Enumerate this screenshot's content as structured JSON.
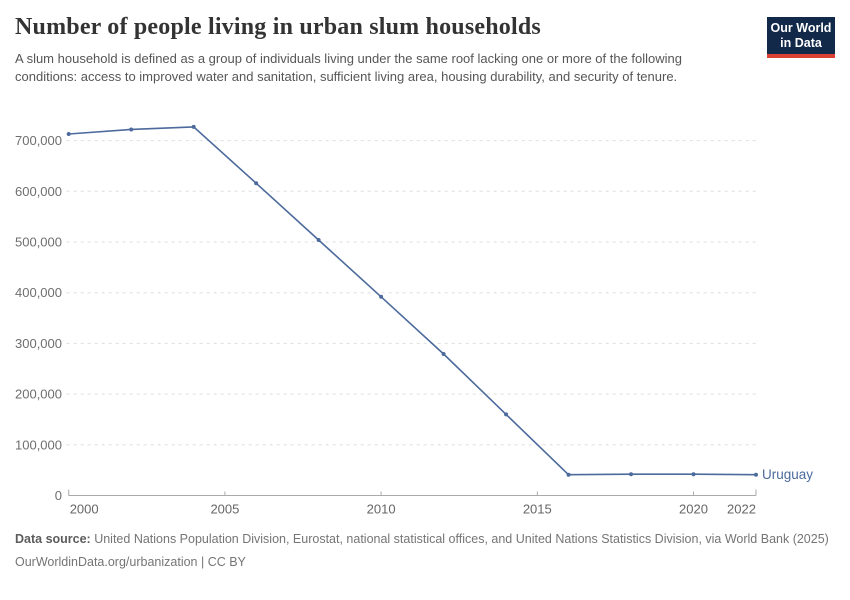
{
  "header": {
    "title": "Number of people living in urban slum households",
    "subtitle": "A slum household is defined as a group of individuals living under the same roof lacking one or more of the following conditions: access to improved water and sanitation, sufficient living area, housing durability, and security of tenure.",
    "logo": {
      "line1": "Our World",
      "line2": "in Data",
      "bg_color": "#12294a",
      "accent_color": "#dc3f34"
    }
  },
  "chart_data": {
    "type": "line",
    "title": "Number of people living in urban slum households",
    "xlabel": "",
    "ylabel": "",
    "x": [
      2000,
      2002,
      2004,
      2006,
      2008,
      2010,
      2012,
      2014,
      2016,
      2018,
      2020,
      2022
    ],
    "series": [
      {
        "name": "Uruguay",
        "color": "#4C6A9C",
        "values": [
          713000,
          722000,
          727000,
          616000,
          504000,
          392000,
          279000,
          160000,
          41000,
          42000,
          42000,
          41000
        ]
      }
    ],
    "x_ticks": [
      2000,
      2005,
      2010,
      2015,
      2020,
      2022
    ],
    "y_ticks": [
      {
        "value": 0,
        "label": "0"
      },
      {
        "value": 100000,
        "label": "100,000"
      },
      {
        "value": 200000,
        "label": "200,000"
      },
      {
        "value": 300000,
        "label": "300,000"
      },
      {
        "value": 400000,
        "label": "400,000"
      },
      {
        "value": 500000,
        "label": "500,000"
      },
      {
        "value": 600000,
        "label": "600,000"
      },
      {
        "value": 700000,
        "label": "700,000"
      }
    ],
    "xlim": [
      2000,
      2022
    ],
    "ylim": [
      0,
      730000
    ],
    "grid": "horizontal-dashed",
    "legend_position": "entity label right of last point",
    "colors": {
      "grid": "#dedede",
      "axis": "#a9a9a9",
      "y_tick_label": "#6e6e6e",
      "x_tick_label": "#666666"
    }
  },
  "footer": {
    "source_bold": "Data source:",
    "source_text": " United Nations Population Division, Eurostat, national statistical offices, and United Nations Statistics Division, via World Bank (2025)",
    "license_line": "OurWorldinData.org/urbanization | CC BY"
  }
}
